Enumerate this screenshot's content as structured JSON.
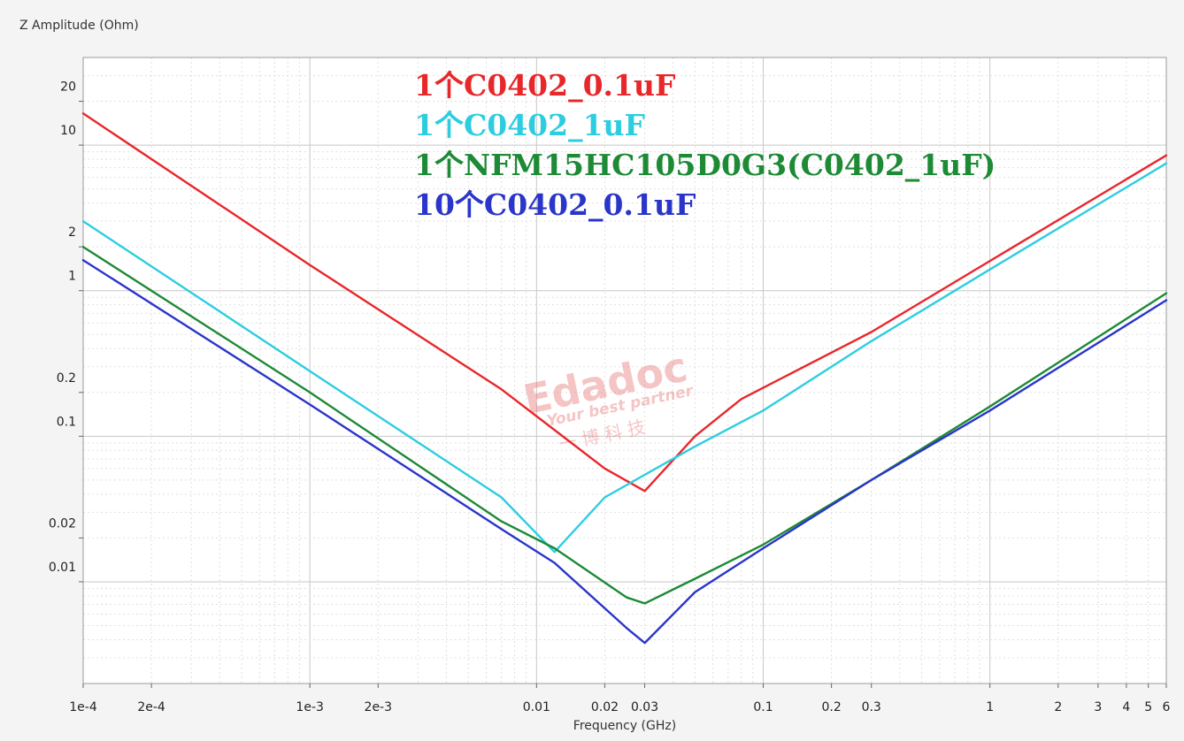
{
  "chart_data": {
    "type": "line",
    "title": "",
    "xlabel": "Frequency (GHz)",
    "ylabel": "Z Amplitude (Ohm)",
    "x_scale": "log",
    "y_scale": "log",
    "xlim": [
      0.0001,
      6
    ],
    "ylim": [
      0.002,
      40
    ],
    "grid": true,
    "legend_position": "top-center",
    "x_ticks": [
      {
        "value": 0.0001,
        "label": "1e-4"
      },
      {
        "value": 0.0002,
        "label": "2e-4"
      },
      {
        "value": 0.001,
        "label": "1e-3"
      },
      {
        "value": 0.002,
        "label": "2e-3"
      },
      {
        "value": 0.01,
        "label": "0.01"
      },
      {
        "value": 0.02,
        "label": "0.02"
      },
      {
        "value": 0.03,
        "label": "0.03"
      },
      {
        "value": 0.1,
        "label": "0.1"
      },
      {
        "value": 0.2,
        "label": "0.2"
      },
      {
        "value": 0.3,
        "label": "0.3"
      },
      {
        "value": 1,
        "label": "1"
      },
      {
        "value": 2,
        "label": "2"
      },
      {
        "value": 3,
        "label": "3"
      },
      {
        "value": 4,
        "label": "4"
      },
      {
        "value": 5,
        "label": "5"
      },
      {
        "value": 6,
        "label": "6"
      }
    ],
    "y_ticks": [
      {
        "value": 20,
        "label": "20"
      },
      {
        "value": 10,
        "label": "10"
      },
      {
        "value": 2,
        "label": "2"
      },
      {
        "value": 1,
        "label": "1"
      },
      {
        "value": 0.2,
        "label": "0.2"
      },
      {
        "value": 0.1,
        "label": "0.1"
      },
      {
        "value": 0.02,
        "label": "0.02"
      },
      {
        "value": 0.01,
        "label": "0.01"
      }
    ],
    "series": [
      {
        "name": "1个C0402_0.1uF",
        "color": "#e8272b",
        "points": [
          [
            0.0001,
            16.5
          ],
          [
            0.001,
            1.5
          ],
          [
            0.007,
            0.21
          ],
          [
            0.02,
            0.06
          ],
          [
            0.03,
            0.042
          ],
          [
            0.05,
            0.1
          ],
          [
            0.08,
            0.18
          ],
          [
            0.3,
            0.52
          ],
          [
            1,
            1.6
          ],
          [
            6,
            8.5
          ]
        ]
      },
      {
        "name": "1个C0402_1uF",
        "color": "#2dcde0",
        "points": [
          [
            0.0001,
            3.0
          ],
          [
            0.001,
            0.28
          ],
          [
            0.007,
            0.038
          ],
          [
            0.012,
            0.016
          ],
          [
            0.02,
            0.038
          ],
          [
            0.05,
            0.085
          ],
          [
            0.1,
            0.15
          ],
          [
            0.3,
            0.45
          ],
          [
            1,
            1.4
          ],
          [
            6,
            7.5
          ]
        ]
      },
      {
        "name": "1个NFM15HC105D0G3(C0402_1uF)",
        "color": "#1d8a36",
        "points": [
          [
            0.0001,
            2.0
          ],
          [
            0.001,
            0.2
          ],
          [
            0.007,
            0.026
          ],
          [
            0.012,
            0.017
          ],
          [
            0.025,
            0.0078
          ],
          [
            0.03,
            0.0071
          ],
          [
            0.05,
            0.0105
          ],
          [
            0.1,
            0.018
          ],
          [
            0.3,
            0.05
          ],
          [
            1,
            0.16
          ],
          [
            6,
            0.96
          ]
        ]
      },
      {
        "name": "10个C0402_0.1uF",
        "color": "#2a35c9",
        "points": [
          [
            0.0001,
            1.62
          ],
          [
            0.001,
            0.165
          ],
          [
            0.007,
            0.023
          ],
          [
            0.012,
            0.0135
          ],
          [
            0.025,
            0.0048
          ],
          [
            0.03,
            0.0038
          ],
          [
            0.05,
            0.0085
          ],
          [
            0.1,
            0.017
          ],
          [
            0.3,
            0.05
          ],
          [
            1,
            0.15
          ],
          [
            6,
            0.86
          ]
        ]
      }
    ],
    "watermark": {
      "logo_text": "Edadoc",
      "slogan": "Your best partner",
      "chinese": "一 博 科 技"
    }
  }
}
